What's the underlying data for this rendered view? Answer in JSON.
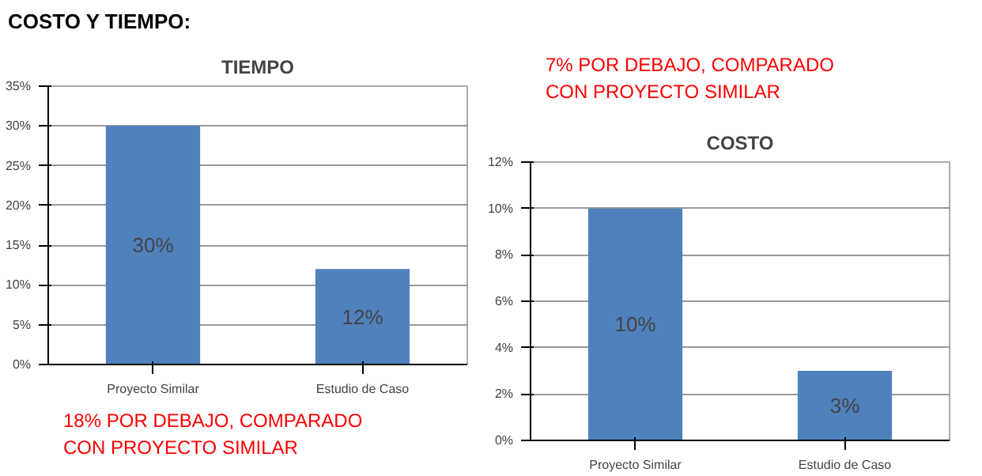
{
  "chart_data": [
    {
      "type": "bar",
      "title": "TIEMPO",
      "categories": [
        "Proyecto Similar",
        "Estudio de Caso"
      ],
      "values": [
        30,
        12
      ],
      "value_labels": [
        "30%",
        "12%"
      ],
      "color": "#4f81bd",
      "ylim": [
        0,
        35
      ],
      "yticks": [
        {
          "value": 0,
          "label": "0%"
        },
        {
          "value": 5,
          "label": "5%"
        },
        {
          "value": 10,
          "label": "10%"
        },
        {
          "value": 15,
          "label": "15%"
        },
        {
          "value": 20,
          "label": "20%"
        },
        {
          "value": 25,
          "label": "25%"
        },
        {
          "value": 30,
          "label": "30%"
        },
        {
          "value": 35,
          "label": "35%"
        }
      ],
      "grid": "y",
      "annotations": [
        "COSTO Y TIEMPO:",
        "18% POR DEBAJO, COMPARADO CON PROYECTO SIMILAR"
      ]
    },
    {
      "type": "bar",
      "title": "COSTO",
      "categories": [
        "Proyecto Similar",
        "Estudio de Caso"
      ],
      "values": [
        10,
        3
      ],
      "value_labels": [
        "10%",
        "3%"
      ],
      "color": "#4f81bd",
      "ylim": [
        0,
        12
      ],
      "yticks": [
        {
          "value": 0,
          "label": "0%"
        },
        {
          "value": 2,
          "label": "2%"
        },
        {
          "value": 4,
          "label": "4%"
        },
        {
          "value": 6,
          "label": "6%"
        },
        {
          "value": 8,
          "label": "8%"
        },
        {
          "value": 10,
          "label": "10%"
        },
        {
          "value": 12,
          "label": "12%"
        }
      ],
      "grid": "y",
      "annotations": [
        "7% POR DEBAJO, COMPARADO CON PROYECTO SIMILAR"
      ]
    }
  ]
}
